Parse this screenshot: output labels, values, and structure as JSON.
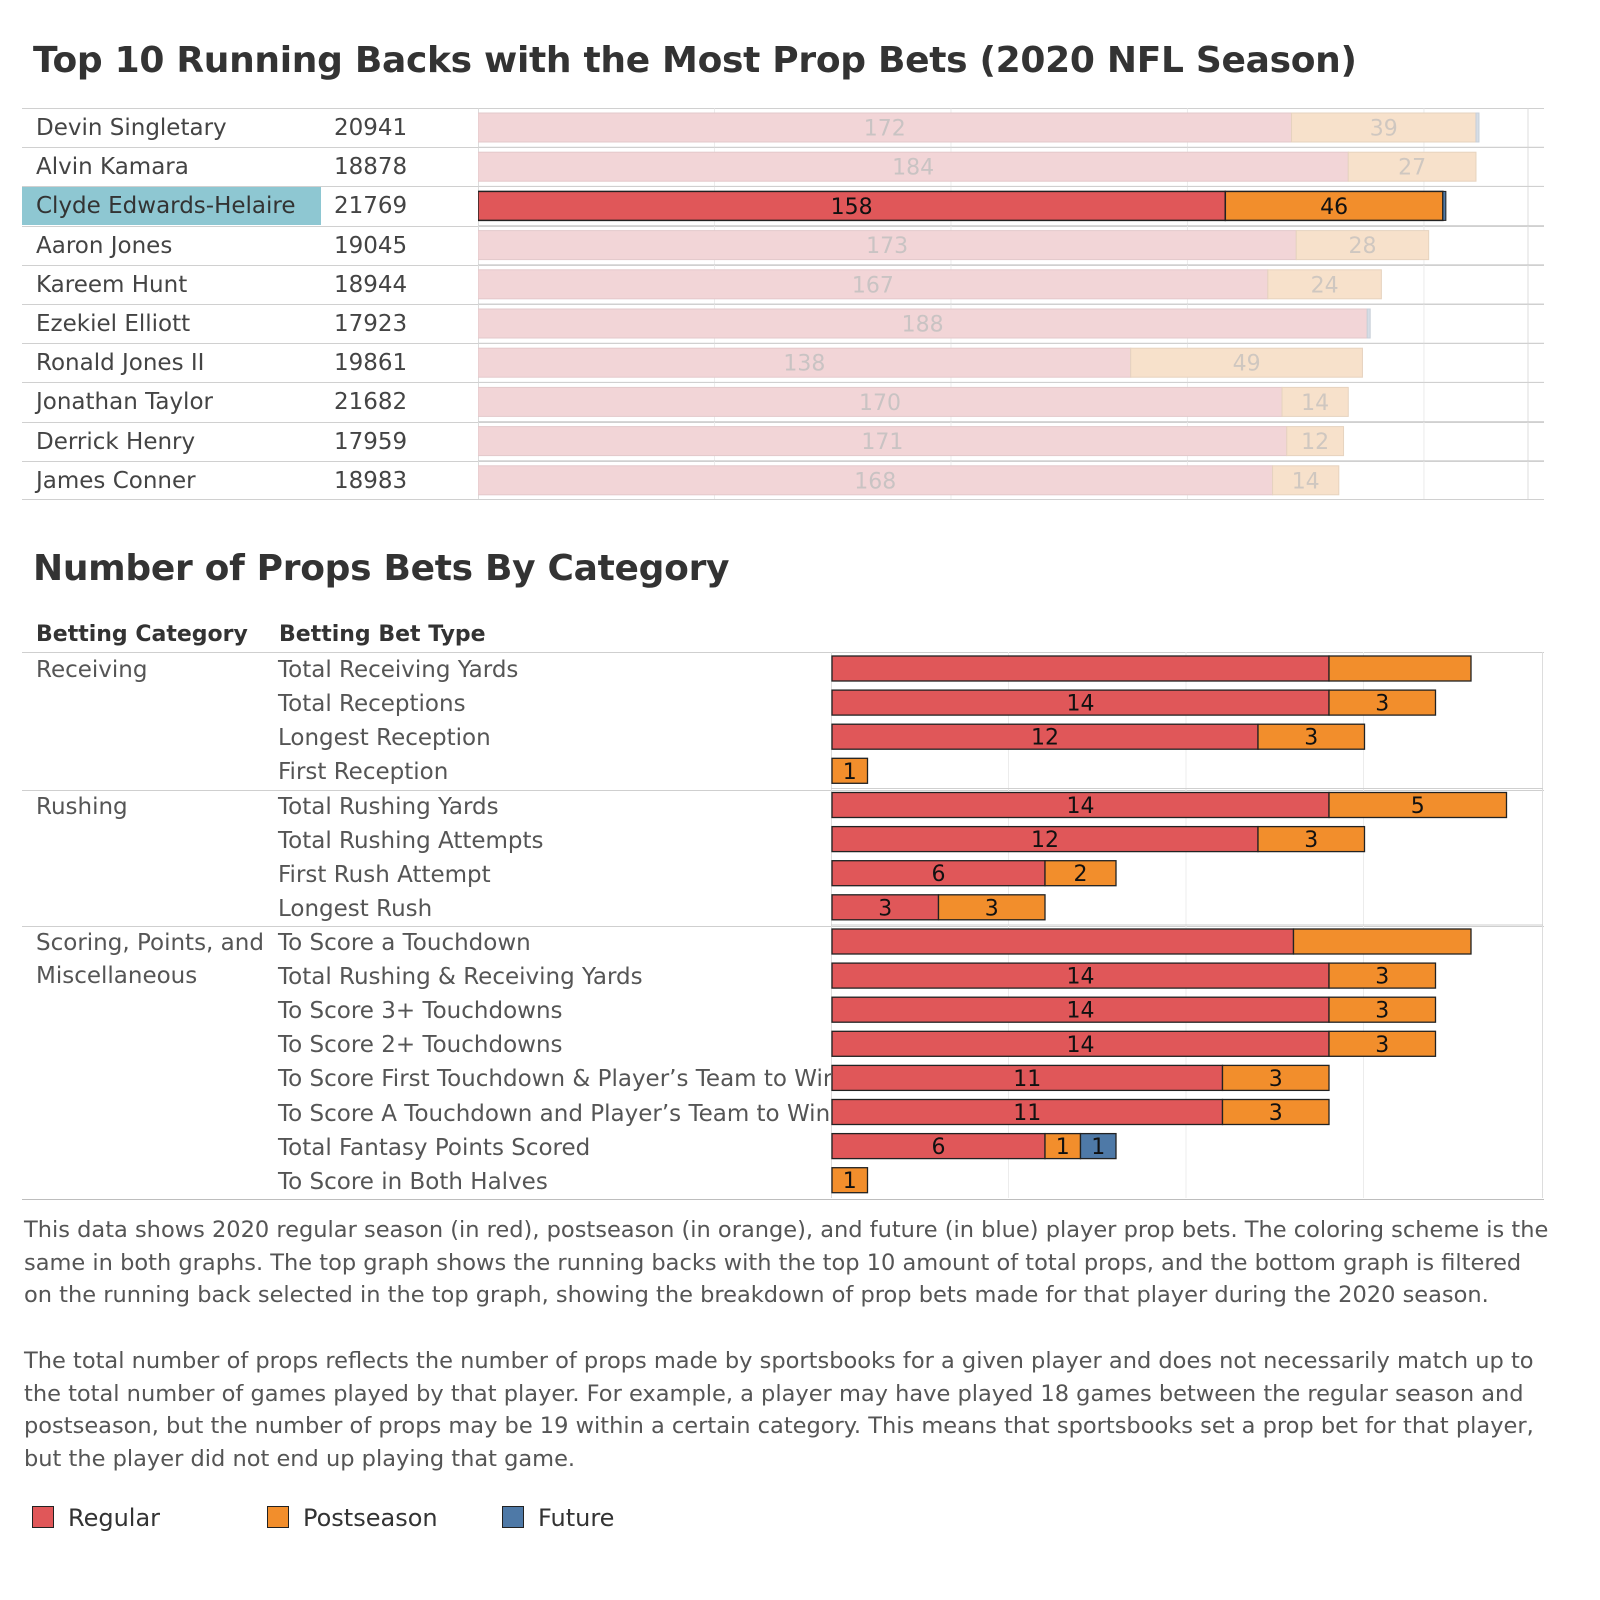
{
  "titles": {
    "top": "Top 10 Running Backs with the Most Prop Bets (2020 NFL Season)",
    "bottom": "Number of Props Bets By Category"
  },
  "colors": {
    "regular": "#e05759",
    "postseason": "#f28e2c",
    "future": "#4e79a7",
    "regular_faded": "#f2d5d7",
    "postseason_faded": "#f7e1cb",
    "selection": "#8ec7d2"
  },
  "chart_data": [
    {
      "type": "bar",
      "orientation": "horizontal",
      "stacked": true,
      "title": "Top 10 Running Backs with the Most Prop Bets (2020 NFL Season)",
      "categories": [
        "Devin Singletary",
        "Alvin Kamara",
        "Clyde Edwards-Helaire",
        "Aaron Jones",
        "Kareem Hunt",
        "Ezekiel Elliott",
        "Ronald Jones II",
        "Jonathan Taylor",
        "Derrick Henry",
        "James Conner"
      ],
      "counts": [
        "20941",
        "18878",
        "21769",
        "19045",
        "18944",
        "17923",
        "19861",
        "21682",
        "17959",
        "18983"
      ],
      "selected": "Clyde Edwards-Helaire",
      "series": [
        {
          "name": "Regular",
          "values": [
            172,
            184,
            158,
            173,
            167,
            188,
            138,
            170,
            171,
            168
          ]
        },
        {
          "name": "Postseason",
          "values": [
            39,
            27,
            46,
            28,
            24,
            0,
            49,
            14,
            12,
            14
          ]
        },
        {
          "name": "Future",
          "values": [
            1,
            0,
            1,
            0,
            0,
            1,
            0,
            0,
            0,
            0
          ]
        }
      ],
      "xlim": [
        0,
        222
      ],
      "grid": true
    },
    {
      "type": "bar",
      "orientation": "horizontal",
      "stacked": true,
      "title": "Number of Props Bets By Category",
      "column_headers": [
        "Betting Category",
        "Betting Bet Type"
      ],
      "groups": [
        {
          "category_lines": [
            "Receiving"
          ],
          "count": 4
        },
        {
          "category_lines": [
            "Rushing"
          ],
          "count": 4
        },
        {
          "category_lines": [
            "Scoring, Points, and",
            "Miscellaneous"
          ],
          "count": 8
        }
      ],
      "categories": [
        "Total Receiving Yards",
        "Total Receptions",
        "Longest Reception",
        "First Reception",
        "Total Rushing Yards",
        "Total Rushing Attempts",
        "First Rush Attempt",
        "Longest Rush",
        "To Score a Touchdown",
        "Total Rushing & Receiving Yards",
        "To Score 3+ Touchdowns",
        "To Score 2+ Touchdowns",
        "To Score First Touchdown & Player’s Team to Win",
        "To Score A Touchdown and Player’s Team to Win",
        "Total Fantasy Points Scored",
        "To Score in Both Halves"
      ],
      "series": [
        {
          "name": "Regular",
          "values": [
            14,
            14,
            12,
            0,
            14,
            12,
            6,
            3,
            13,
            14,
            14,
            14,
            11,
            11,
            6,
            0
          ]
        },
        {
          "name": "Postseason",
          "values": [
            4,
            3,
            3,
            1,
            5,
            3,
            2,
            3,
            5,
            3,
            3,
            3,
            3,
            3,
            1,
            1
          ]
        },
        {
          "name": "Future",
          "values": [
            0,
            0,
            0,
            0,
            0,
            0,
            0,
            0,
            0,
            0,
            0,
            0,
            0,
            0,
            1,
            0
          ]
        }
      ],
      "label_shown": [
        false,
        true,
        true,
        true,
        true,
        true,
        true,
        true,
        false,
        true,
        true,
        true,
        true,
        true,
        true,
        true
      ],
      "xlim": [
        0,
        20
      ],
      "grid": true
    }
  ],
  "notes": [
    "This data shows 2020 regular season (in red), postseason (in orange), and future (in blue) player prop bets. The coloring scheme is the same in both graphs. The top graph shows the running backs with the top 10 amount of total props, and the bottom graph is filtered on the running back selected in the top graph, showing the breakdown of prop bets made for that player during the 2020 season.",
    "The total number of props reflects the number of props made by sportsbooks for a given player and does not necessarily match up to the total number of games played by that player. For example, a player may have played 18 games between the regular season and postseason, but the number of props may be 19 within a certain category. This means that sportsbooks set a prop bet for that player, but the player did not end up playing that game."
  ],
  "legend": [
    {
      "label": "Regular",
      "color": "#e05759"
    },
    {
      "label": "Postseason",
      "color": "#f28e2c"
    },
    {
      "label": "Future",
      "color": "#4e79a7"
    }
  ]
}
